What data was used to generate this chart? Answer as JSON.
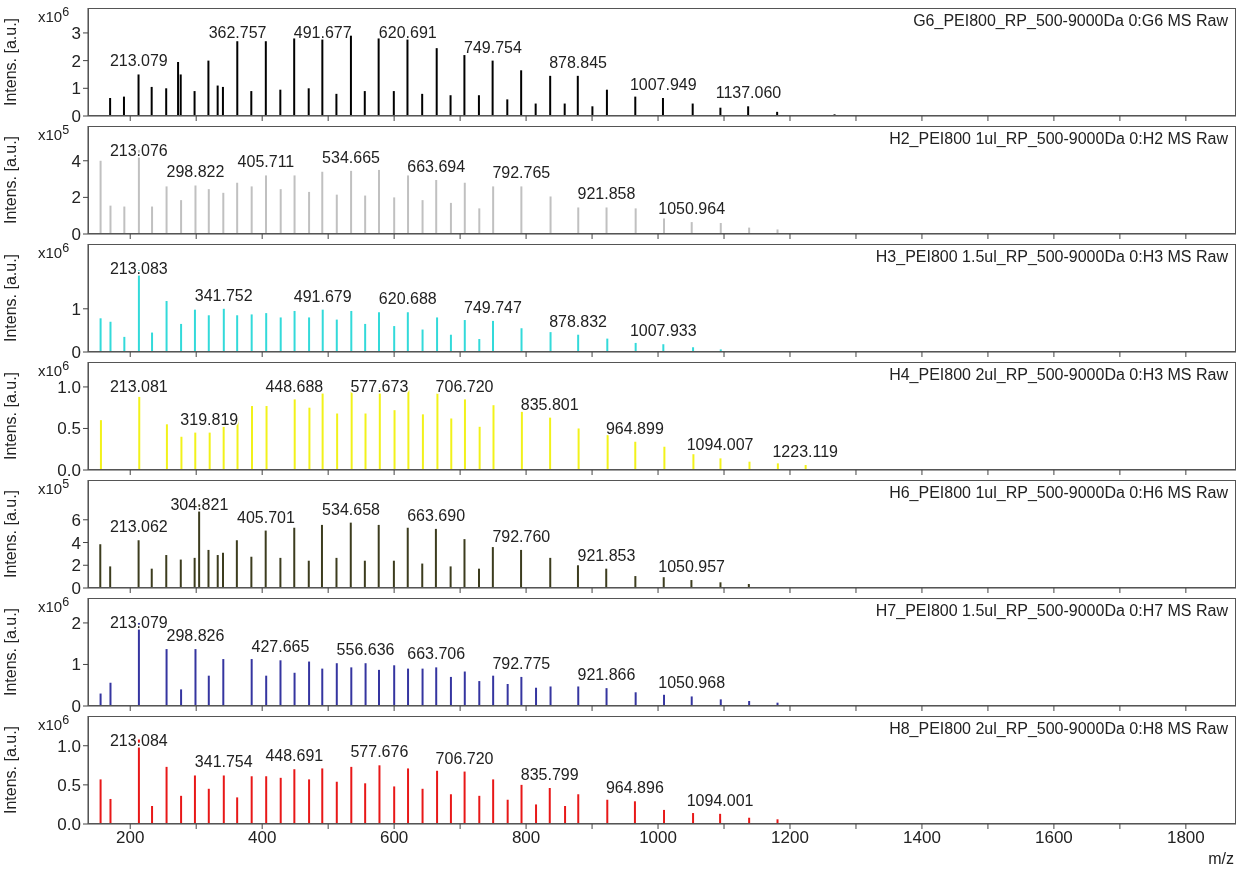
{
  "chart_data": [
    {
      "type": "bar",
      "title": "G6_PEI800_RP_500-9000Da 0:G6 MS Raw",
      "ylabel": "Intens. [a.u.]",
      "color": "#000000",
      "tick_labels": "y",
      "xlim": [
        136,
        1876
      ],
      "xticks": [
        200,
        {
          "value": 300,
          "label": null
        },
        400,
        {
          "value": 500,
          "label": null
        },
        600,
        {
          "value": 700,
          "label": null
        },
        800,
        {
          "value": 900,
          "label": null
        },
        1000,
        {
          "value": 1100,
          "label": null
        },
        1200,
        {
          "value": 1300,
          "label": null
        },
        1400,
        {
          "value": 1500,
          "label": null
        },
        1600,
        {
          "value": 1700,
          "label": null
        },
        1800
      ],
      "ylim": [
        0,
        3.9
      ],
      "yticks": [
        0,
        1,
        2,
        3
      ],
      "x": [
        170,
        191,
        213.079,
        233,
        255,
        273,
        277,
        298,
        319,
        333,
        341,
        362.757,
        384,
        406,
        428,
        449,
        471,
        491.677,
        513,
        535,
        556,
        577,
        600,
        620.691,
        643,
        665,
        686,
        707,
        729,
        749.754,
        772,
        793,
        815,
        837,
        859,
        878.845,
        901,
        923,
        966,
        1007.949,
        1053,
        1095,
        1137.06,
        1181,
        1268
      ],
      "values": [
        0.65,
        0.7,
        1.5,
        1.05,
        1.0,
        1.95,
        1.5,
        0.9,
        2.0,
        1.1,
        1.05,
        2.7,
        0.9,
        2.7,
        0.95,
        2.8,
        1.0,
        2.9,
        0.8,
        2.9,
        0.9,
        2.8,
        0.9,
        2.85,
        0.8,
        2.45,
        0.75,
        2.2,
        0.75,
        2.0,
        0.6,
        1.65,
        0.45,
        1.45,
        0.45,
        1.45,
        0.35,
        0.95,
        0.7,
        0.65,
        0.45,
        0.3,
        0.35,
        0.15,
        0.06
      ],
      "annotations": [
        "x10$^{6}$",
        {
          "text": "213.079",
          "x": 213.079,
          "y": 1.5
        },
        {
          "text": "362.757",
          "x": 362.757,
          "y": 2.7
        },
        {
          "text": "491.677",
          "x": 491.677,
          "y": 2.9
        },
        {
          "text": "620.691",
          "x": 620.691,
          "y": 2.85
        },
        {
          "text": "749.754",
          "x": 749.754,
          "y": 2.0
        },
        {
          "text": "878.845",
          "x": 878.845,
          "y": 1.45
        },
        {
          "text": "1007.949",
          "x": 1007.949,
          "y": 0.65
        },
        {
          "text": "1137.060",
          "x": 1137.06,
          "y": 0.35
        }
      ]
    },
    {
      "type": "bar",
      "title": "H2_PEI800 1ul_RP_500-9000Da 0:H2 MS Raw",
      "ylabel": "Intens. [a.u.]",
      "color": "#c0c0c0",
      "tick_labels": "y",
      "xlim": [
        136,
        1876
      ],
      "xticks": [
        200,
        {
          "value": 300,
          "label": null
        },
        400,
        {
          "value": 500,
          "label": null
        },
        600,
        {
          "value": 700,
          "label": null
        },
        800,
        {
          "value": 900,
          "label": null
        },
        1000,
        {
          "value": 1100,
          "label": null
        },
        1200,
        {
          "value": 1300,
          "label": null
        },
        1400,
        {
          "value": 1500,
          "label": null
        },
        1600,
        {
          "value": 1700,
          "label": null
        },
        1800
      ],
      "ylim": [
        0,
        5.9
      ],
      "yticks": [
        0,
        2,
        4
      ],
      "x": [
        155,
        170,
        191,
        213.076,
        233,
        255,
        277,
        298.822,
        319,
        341,
        362,
        384,
        405.711,
        428,
        449,
        471,
        491,
        513,
        534.665,
        556,
        577,
        600,
        621,
        643,
        663.694,
        686,
        707,
        729,
        750,
        792.765,
        837,
        879,
        921.858,
        966,
        1009,
        1050.964,
        1095,
        1138,
        1181
      ],
      "values": [
        4.0,
        1.55,
        1.5,
        4.6,
        1.5,
        2.6,
        1.85,
        2.65,
        2.45,
        2.25,
        2.8,
        2.6,
        3.2,
        2.45,
        3.2,
        2.3,
        3.4,
        2.15,
        3.45,
        2.1,
        3.5,
        2.0,
        3.2,
        1.85,
        2.95,
        1.7,
        2.8,
        1.4,
        2.6,
        2.6,
        2.05,
        1.45,
        1.45,
        1.4,
        0.85,
        0.65,
        0.6,
        0.35,
        0.25
      ],
      "annotations": [
        "x10$^{5}$",
        {
          "text": "213.076",
          "x": 213.076,
          "y": 4.6
        },
        {
          "text": "298.822",
          "x": 298.822,
          "y": 2.65
        },
        {
          "text": "405.711",
          "x": 405.711,
          "y": 3.2
        },
        {
          "text": "534.665",
          "x": 534.665,
          "y": 3.45
        },
        {
          "text": "663.694",
          "x": 663.694,
          "y": 2.95
        },
        {
          "text": "792.765",
          "x": 792.765,
          "y": 2.6
        },
        {
          "text": "921.858",
          "x": 921.858,
          "y": 1.45
        },
        {
          "text": "1050.964",
          "x": 1050.964,
          "y": 0.65
        }
      ]
    },
    {
      "type": "bar",
      "title": "H3_PEI800 1.5ul_RP_500-9000Da 0:H3 MS Raw",
      "ylabel": "Intens. [a.u.]",
      "color": "#33dada",
      "tick_labels": "y",
      "xlim": [
        136,
        1876
      ],
      "xticks": [
        200,
        {
          "value": 300,
          "label": null
        },
        400,
        {
          "value": 500,
          "label": null
        },
        600,
        {
          "value": 700,
          "label": null
        },
        800,
        {
          "value": 900,
          "label": null
        },
        1000,
        {
          "value": 1100,
          "label": null
        },
        1200,
        {
          "value": 1300,
          "label": null
        },
        1400,
        {
          "value": 1500,
          "label": null
        },
        1600,
        {
          "value": 1700,
          "label": null
        },
        1800
      ],
      "ylim": [
        0,
        2.5
      ],
      "yticks": [
        0,
        1
      ],
      "x": [
        155,
        170,
        191,
        213.083,
        233,
        255,
        277,
        298,
        319,
        341.752,
        362,
        384,
        406,
        428,
        449,
        471,
        491.679,
        513,
        535,
        556,
        577,
        600,
        620.688,
        643,
        665,
        686,
        707,
        729,
        749.747,
        793,
        837,
        878.832,
        923,
        966,
        1007.933,
        1053,
        1095
      ],
      "values": [
        0.78,
        0.7,
        0.35,
        1.9,
        0.45,
        1.18,
        0.65,
        0.98,
        0.85,
        1.0,
        0.85,
        0.87,
        0.9,
        0.8,
        0.95,
        0.8,
        0.98,
        0.75,
        0.95,
        0.65,
        0.92,
        0.6,
        0.92,
        0.52,
        0.8,
        0.4,
        0.74,
        0.3,
        0.72,
        0.55,
        0.46,
        0.4,
        0.31,
        0.21,
        0.18,
        0.11,
        0.06
      ],
      "annotations": [
        "x10$^{6}$",
        {
          "text": "213.083",
          "x": 213.083,
          "y": 1.9
        },
        {
          "text": "341.752",
          "x": 341.752,
          "y": 1.0
        },
        {
          "text": "491.679",
          "x": 491.679,
          "y": 0.98
        },
        {
          "text": "620.688",
          "x": 620.688,
          "y": 0.92
        },
        {
          "text": "749.747",
          "x": 749.747,
          "y": 0.72
        },
        {
          "text": "878.832",
          "x": 878.832,
          "y": 0.4
        },
        {
          "text": "1007.933",
          "x": 1007.933,
          "y": 0.18
        }
      ]
    },
    {
      "type": "bar",
      "title": "H4_PEI800 2ul_RP_500-9000Da 0:H3 MS Raw",
      "ylabel": "Intens. [a.u.]",
      "color": "#f2f21a",
      "tick_labels": "y",
      "xlim": [
        136,
        1876
      ],
      "xticks": [
        200,
        {
          "value": 300,
          "label": null
        },
        400,
        {
          "value": 500,
          "label": null
        },
        600,
        {
          "value": 700,
          "label": null
        },
        800,
        {
          "value": 900,
          "label": null
        },
        1000,
        {
          "value": 1100,
          "label": null
        },
        1200,
        {
          "value": 1300,
          "label": null
        },
        1400,
        {
          "value": 1500,
          "label": null
        },
        1600,
        {
          "value": 1700,
          "label": null
        },
        1800
      ],
      "ylim": [
        0,
        1.3
      ],
      "yticks": [
        {
          "value": 0,
          "label": "0.0"
        },
        {
          "value": 0.5,
          "label": "0.5"
        },
        {
          "value": 1,
          "label": "1.0"
        }
      ],
      "x": [
        155,
        213.081,
        255,
        277,
        298,
        319.819,
        341,
        362,
        384,
        406,
        448.688,
        471,
        491,
        513,
        535,
        556,
        577.673,
        600,
        621,
        643,
        665,
        686,
        706.72,
        729,
        750,
        793,
        835.801,
        879,
        923,
        964.899,
        1009,
        1053,
        1094.007,
        1138,
        1181,
        1223.119
      ],
      "values": [
        0.6,
        0.88,
        0.55,
        0.4,
        0.45,
        0.45,
        0.52,
        0.65,
        0.77,
        0.77,
        0.85,
        0.75,
        0.92,
        0.68,
        0.96,
        0.68,
        0.98,
        0.72,
        0.96,
        0.67,
        0.92,
        0.62,
        0.85,
        0.52,
        0.78,
        0.7,
        0.63,
        0.5,
        0.42,
        0.34,
        0.28,
        0.19,
        0.14,
        0.1,
        0.08,
        0.06
      ],
      "annotations": [
        "x10$^{6}$",
        {
          "text": "213.081",
          "x": 213.081,
          "y": 0.88
        },
        {
          "text": "319.819",
          "x": 319.819,
          "y": 0.45
        },
        {
          "text": "448.688",
          "x": 448.688,
          "y": 0.85
        },
        {
          "text": "577.673",
          "x": 577.673,
          "y": 0.98
        },
        {
          "text": "706.720",
          "x": 706.72,
          "y": 0.85
        },
        {
          "text": "835.801",
          "x": 835.801,
          "y": 0.63
        },
        {
          "text": "964.899",
          "x": 964.899,
          "y": 0.34
        },
        {
          "text": "1094.007",
          "x": 1094.007,
          "y": 0.14
        },
        {
          "text": "1223.119",
          "x": 1223.119,
          "y": 0.06
        }
      ]
    },
    {
      "type": "bar",
      "title": "H6_PEI800 1ul_RP_500-9000Da 0:H6 MS Raw",
      "ylabel": "Intens. [a.u.]",
      "color": "#3c3c1e",
      "tick_labels": "y",
      "xlim": [
        136,
        1876
      ],
      "xticks": [
        200,
        {
          "value": 300,
          "label": null
        },
        400,
        {
          "value": 500,
          "label": null
        },
        600,
        {
          "value": 700,
          "label": null
        },
        800,
        {
          "value": 900,
          "label": null
        },
        1000,
        {
          "value": 1100,
          "label": null
        },
        1200,
        {
          "value": 1300,
          "label": null
        },
        1400,
        {
          "value": 1500,
          "label": null
        },
        1600,
        {
          "value": 1700,
          "label": null
        },
        1800
      ],
      "ylim": [
        0,
        9.5
      ],
      "yticks": [
        0,
        2,
        4,
        6
      ],
      "x": [
        155,
        170,
        213.062,
        233,
        255,
        277,
        298,
        304.821,
        319,
        333,
        341,
        362,
        384,
        405.701,
        428,
        449,
        471,
        491,
        513,
        534.658,
        556,
        577,
        600,
        621,
        643,
        663.69,
        686,
        707,
        729,
        750,
        792.76,
        837,
        879,
        921.853,
        966,
        1009,
        1050.957,
        1095,
        1138
      ],
      "values": [
        3.85,
        1.9,
        4.2,
        1.7,
        2.9,
        2.5,
        2.65,
        7.35,
        3.35,
        2.9,
        3.1,
        4.2,
        2.75,
        5.05,
        2.65,
        5.3,
        2.4,
        5.55,
        2.65,
        5.75,
        2.4,
        5.55,
        2.4,
        5.3,
        2.15,
        5.2,
        1.9,
        4.3,
        1.7,
        3.6,
        3.35,
        2.65,
        2.0,
        1.7,
        1.05,
        0.95,
        0.7,
        0.5,
        0.35
      ],
      "annotations": [
        "x10$^{5}$",
        {
          "text": "213.062",
          "x": 213.062,
          "y": 4.2
        },
        {
          "text": "304.821",
          "x": 304.821,
          "y": 7.35
        },
        {
          "text": "405.701",
          "x": 405.701,
          "y": 5.05
        },
        {
          "text": "534.658",
          "x": 534.658,
          "y": 5.75
        },
        {
          "text": "663.690",
          "x": 663.69,
          "y": 5.2
        },
        {
          "text": "792.760",
          "x": 792.76,
          "y": 3.35
        },
        {
          "text": "921.853",
          "x": 921.853,
          "y": 1.7
        },
        {
          "text": "1050.957",
          "x": 1050.957,
          "y": 0.7
        }
      ]
    },
    {
      "type": "bar",
      "title": "H7_PEI800 1.5ul_RP_500-9000Da 0:H7 MS Raw",
      "ylabel": "Intens. [a.u.]",
      "color": "#3535a0",
      "tick_labels": "y",
      "xlim": [
        136,
        1876
      ],
      "xticks": [
        200,
        {
          "value": 300,
          "label": null
        },
        400,
        {
          "value": 500,
          "label": null
        },
        600,
        {
          "value": 700,
          "label": null
        },
        800,
        {
          "value": 900,
          "label": null
        },
        1000,
        {
          "value": 1100,
          "label": null
        },
        1200,
        {
          "value": 1300,
          "label": null
        },
        1400,
        {
          "value": 1500,
          "label": null
        },
        1600,
        {
          "value": 1700,
          "label": null
        },
        1800
      ],
      "ylim": [
        0,
        2.6
      ],
      "yticks": [
        0,
        1,
        2
      ],
      "x": [
        155,
        170,
        213.079,
        255,
        277,
        298.826,
        319,
        341,
        384,
        406,
        427.665,
        449,
        471,
        491,
        513,
        535,
        556.636,
        577,
        600,
        621,
        643,
        663.706,
        686,
        707,
        729,
        750,
        772,
        792.775,
        815,
        837,
        879,
        921.866,
        966,
        1009,
        1050.968,
        1095,
        1138,
        1181
      ],
      "values": [
        0.3,
        0.56,
        2.0,
        1.37,
        0.4,
        1.37,
        0.73,
        1.13,
        1.13,
        0.73,
        1.1,
        0.8,
        1.07,
        0.9,
        1.03,
        0.93,
        1.03,
        0.87,
        0.98,
        0.9,
        0.9,
        0.93,
        0.7,
        0.83,
        0.6,
        0.73,
        0.53,
        0.7,
        0.44,
        0.47,
        0.47,
        0.43,
        0.33,
        0.27,
        0.23,
        0.16,
        0.12,
        0.08
      ],
      "annotations": [
        "x10$^{6}$",
        {
          "text": "213.079",
          "x": 213.079,
          "y": 2.0
        },
        {
          "text": "298.826",
          "x": 298.826,
          "y": 1.37
        },
        {
          "text": "427.665",
          "x": 427.665,
          "y": 1.1
        },
        {
          "text": "556.636",
          "x": 556.636,
          "y": 1.03
        },
        {
          "text": "663.706",
          "x": 663.706,
          "y": 0.93
        },
        {
          "text": "792.775",
          "x": 792.775,
          "y": 0.7
        },
        {
          "text": "921.866",
          "x": 921.866,
          "y": 0.43
        },
        {
          "text": "1050.968",
          "x": 1050.968,
          "y": 0.23
        }
      ]
    },
    {
      "type": "bar",
      "title": "H8_PEI800 2ul_RP_500-9000Da 0:H8 MS Raw",
      "ylabel": "Intens. [a.u.]",
      "xlabel": "m/z",
      "color": "#e81818",
      "xlim": [
        136,
        1876
      ],
      "xticks": [
        200,
        {
          "value": 300,
          "label": null
        },
        400,
        {
          "value": 500,
          "label": null
        },
        600,
        {
          "value": 700,
          "label": null
        },
        800,
        {
          "value": 900,
          "label": null
        },
        1000,
        {
          "value": 1100,
          "label": null
        },
        1200,
        {
          "value": 1300,
          "label": null
        },
        1400,
        {
          "value": 1500,
          "label": null
        },
        1600,
        {
          "value": 1700,
          "label": null
        },
        1800
      ],
      "ylim": [
        0,
        1.38
      ],
      "yticks": [
        {
          "value": 0,
          "label": "0.0"
        },
        {
          "value": 0.5,
          "label": "0.5"
        },
        {
          "value": 1,
          "label": "1.0"
        }
      ],
      "x": [
        155,
        170,
        213.084,
        233,
        255,
        277,
        298,
        319,
        341.754,
        362,
        384,
        406,
        428,
        448.691,
        471,
        491,
        513,
        535,
        556,
        577.676,
        600,
        621,
        643,
        665,
        686,
        706.72,
        729,
        750,
        772,
        793,
        815,
        835.799,
        859,
        879,
        923,
        964.896,
        1009,
        1053,
        1094.001,
        1138,
        1181
      ],
      "values": [
        0.57,
        0.32,
        1.08,
        0.23,
        0.73,
        0.36,
        0.62,
        0.45,
        0.62,
        0.34,
        0.61,
        0.61,
        0.59,
        0.7,
        0.57,
        0.71,
        0.54,
        0.73,
        0.52,
        0.75,
        0.48,
        0.71,
        0.45,
        0.68,
        0.38,
        0.67,
        0.36,
        0.57,
        0.31,
        0.5,
        0.25,
        0.46,
        0.23,
        0.38,
        0.31,
        0.29,
        0.18,
        0.14,
        0.13,
        0.08,
        0.06
      ],
      "annotations": [
        "x10$^{6}$",
        {
          "text": "213.084",
          "x": 213.084,
          "y": 1.08
        },
        {
          "text": "341.754",
          "x": 341.754,
          "y": 0.62
        },
        {
          "text": "448.691",
          "x": 448.691,
          "y": 0.7
        },
        {
          "text": "577.676",
          "x": 577.676,
          "y": 0.75
        },
        {
          "text": "706.720",
          "x": 706.72,
          "y": 0.67
        },
        {
          "text": "835.799",
          "x": 835.799,
          "y": 0.46
        },
        {
          "text": "964.896",
          "x": 964.896,
          "y": 0.29
        },
        {
          "text": "1094.001",
          "x": 1094.001,
          "y": 0.13
        }
      ]
    }
  ]
}
